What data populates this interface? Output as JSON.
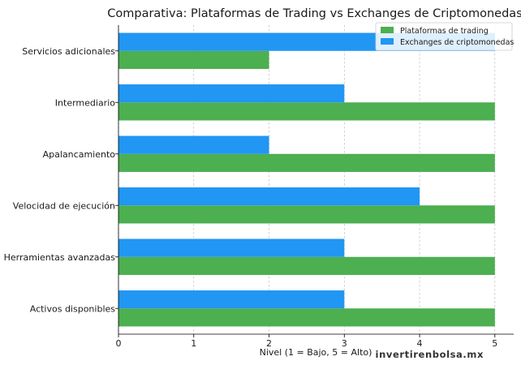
{
  "chart_data": {
    "type": "bar",
    "orientation": "horizontal",
    "title": "Comparativa: Plataformas de Trading vs Exchanges de Criptomonedas",
    "xlabel": "Nivel (1 = Bajo, 5 = Alto)",
    "ylabel": "",
    "xlim": [
      0,
      5.25
    ],
    "xticks": [
      0,
      1,
      2,
      3,
      4,
      5
    ],
    "grid": "vertical-dashed",
    "legend_position": "top-right",
    "categories": [
      "Activos disponibles",
      "Herramientas avanzadas",
      "Velocidad de ejecución",
      "Apalancamiento",
      "Intermediario",
      "Servicios adicionales"
    ],
    "series": [
      {
        "name": "Plataformas de trading",
        "color": "#4caf50",
        "values": [
          5,
          5,
          5,
          5,
          5,
          2
        ]
      },
      {
        "name": "Exchanges de criptomonedas",
        "color": "#2196f3",
        "values": [
          3,
          3,
          4,
          2,
          3,
          5
        ]
      }
    ]
  },
  "watermark": "invertirenbolsa.mx"
}
